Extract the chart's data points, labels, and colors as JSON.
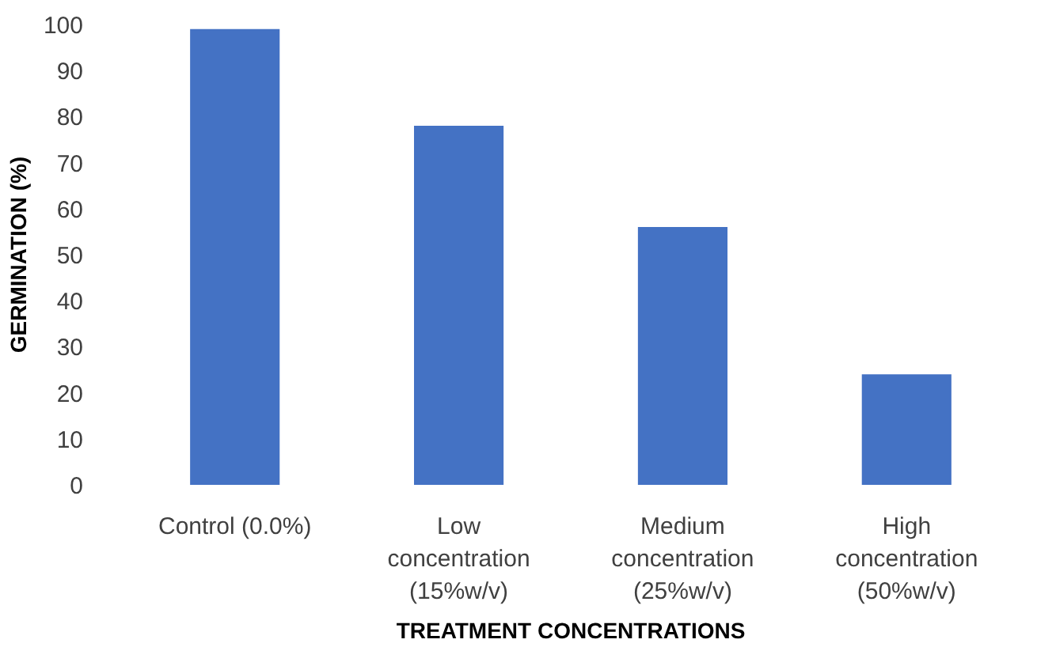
{
  "chart_data": {
    "type": "bar",
    "xlabel": "TREATMENT CONCENTRATIONS",
    "ylabel": "GERMINATION (%)",
    "categories": [
      "Control (0.0%)",
      "Low\nconcentration\n(15%w/v)",
      "Medium\nconcentration\n(25%w/v)",
      "High\nconcentration\n(50%w/v)"
    ],
    "values": [
      99,
      78,
      56,
      24
    ],
    "color": "#4472c4",
    "ylim": [
      0,
      100
    ],
    "yticks": [
      0,
      10,
      20,
      30,
      40,
      50,
      60,
      70,
      80,
      90,
      100
    ],
    "grid": false
  }
}
